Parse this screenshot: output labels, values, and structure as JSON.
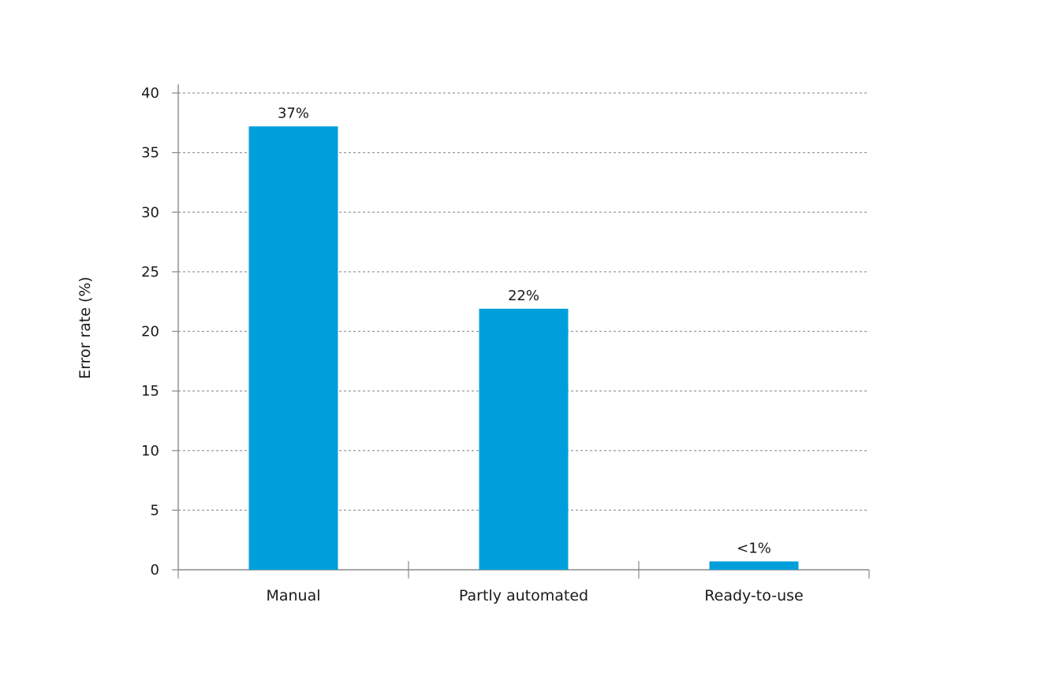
{
  "chart_data": {
    "type": "bar",
    "categories": [
      "Manual",
      "Partly automated",
      "Ready-to-use"
    ],
    "values": [
      37.2,
      21.9,
      0.7
    ],
    "data_labels": [
      "37%",
      "22%",
      "<1%"
    ],
    "ylabel": "Error rate (%)",
    "xlabel": "",
    "ylim": [
      0,
      40
    ],
    "yticks": [
      "0",
      "5",
      "10",
      "15",
      "20",
      "25",
      "30",
      "35",
      "40"
    ],
    "grid": true,
    "grid_style": "dashed",
    "legend": "none",
    "bar_color": "#009fdb"
  }
}
